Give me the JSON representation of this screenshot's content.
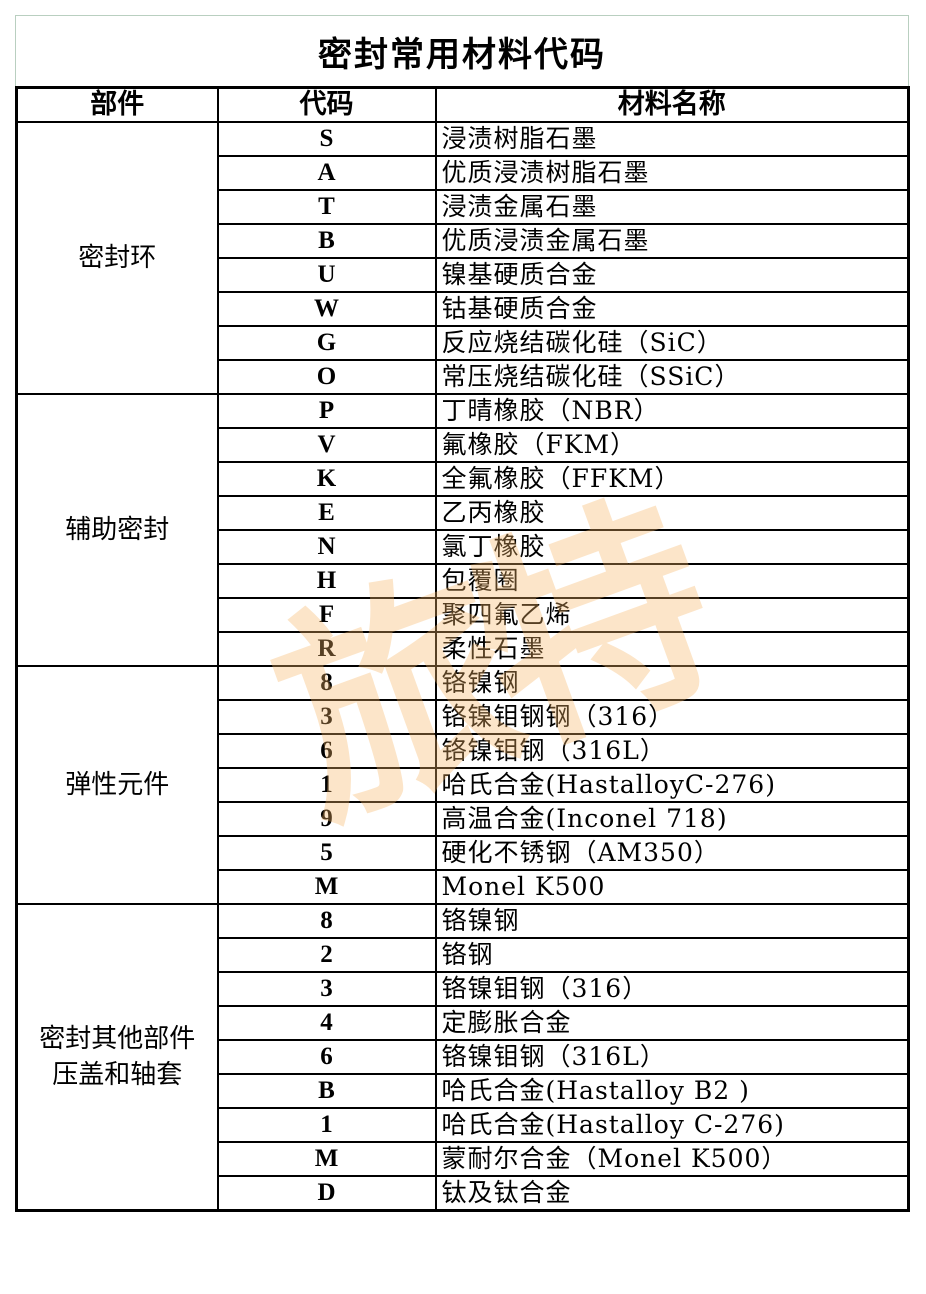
{
  "title": "密封常用材料代码",
  "headers": [
    "部件",
    "代码",
    "材料名称"
  ],
  "watermark": "旅特",
  "groups": [
    {
      "part": [
        "密封环"
      ],
      "rows": [
        [
          "S",
          "浸渍树脂石墨"
        ],
        [
          "A",
          "优质浸渍树脂石墨"
        ],
        [
          "T",
          "浸渍金属石墨"
        ],
        [
          "B",
          "优质浸渍金属石墨"
        ],
        [
          "U",
          "镍基硬质合金"
        ],
        [
          "W",
          "钴基硬质合金"
        ],
        [
          "G",
          "反应烧结碳化硅（SiC）"
        ],
        [
          "O",
          "常压烧结碳化硅（SSiC）"
        ]
      ]
    },
    {
      "part": [
        "辅助密封"
      ],
      "rows": [
        [
          "P",
          "丁晴橡胶（NBR）"
        ],
        [
          "V",
          "氟橡胶（FKM）"
        ],
        [
          "K",
          "全氟橡胶（FFKM）"
        ],
        [
          "E",
          "乙丙橡胶"
        ],
        [
          "N",
          "氯丁橡胶"
        ],
        [
          "H",
          "包覆圈"
        ],
        [
          "F",
          "聚四氟乙烯"
        ],
        [
          "R",
          "柔性石墨"
        ]
      ]
    },
    {
      "part": [
        "弹性元件"
      ],
      "rows": [
        [
          "8",
          "铬镍钢"
        ],
        [
          "3",
          "铬镍钼钢钢（316）"
        ],
        [
          "6",
          "铬镍钼钢（316L）"
        ],
        [
          "1",
          "哈氏合金(HastalloyC-276)"
        ],
        [
          "9",
          "高温合金(Inconel 718)"
        ],
        [
          "5",
          "硬化不锈钢（AM350）"
        ],
        [
          "M",
          "Monel K500"
        ]
      ]
    },
    {
      "part": [
        "密封其他部件",
        "压盖和轴套"
      ],
      "rows": [
        [
          "8",
          "铬镍钢"
        ],
        [
          "2",
          "铬钢"
        ],
        [
          "3",
          "铬镍钼钢（316）"
        ],
        [
          "4",
          "定膨胀合金"
        ],
        [
          "6",
          "铬镍钼钢（316L）"
        ],
        [
          "B",
          "哈氏合金(Hastalloy B2 )"
        ],
        [
          "1",
          "哈氏合金(Hastalloy C-276)"
        ],
        [
          "M",
          "蒙耐尔合金（Monel K500）"
        ],
        [
          "D",
          "钛及钛合金"
        ]
      ]
    }
  ]
}
